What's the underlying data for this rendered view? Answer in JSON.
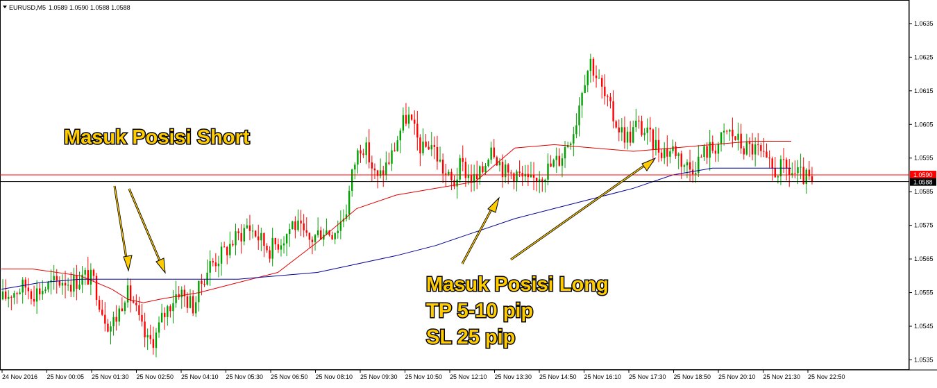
{
  "header": {
    "symbol": "EURUSD,M5",
    "ohlc": "1.0589 1.0590 1.0588 1.0588"
  },
  "price_tags": {
    "bid": "1.0590",
    "ask": "1.0588"
  },
  "annotations": {
    "short": "Masuk Posisi Short",
    "long_lines": [
      "Masuk Posisi Long",
      "TP 5-10 pip",
      "SL 25 pip"
    ]
  },
  "colors": {
    "bull": "#00a000",
    "bear": "#ff0000",
    "ma_red": "#e00000",
    "ma_blue": "#000099",
    "bid_line": "#ff0000",
    "ask_line": "#000000",
    "annotation_fill": "#ffcc00",
    "arrow_fill": "#ffcc00"
  },
  "chart_data": {
    "type": "candlestick",
    "symbol": "EURUSD",
    "timeframe": "M5",
    "ylim": [
      1.0532,
      1.0642
    ],
    "y_ticks": [
      "1.0535",
      "1.0545",
      "1.0555",
      "1.0565",
      "1.0575",
      "1.0585",
      "1.0595",
      "1.0605",
      "1.0615",
      "1.0625",
      "1.0635"
    ],
    "x_labels": [
      "24 Nov 2016",
      "25 Nov 00:05",
      "25 Nov 01:30",
      "25 Nov 02:50",
      "25 Nov 04:10",
      "25 Nov 05:30",
      "25 Nov 06:50",
      "25 Nov 08:10",
      "25 Nov 09:30",
      "25 Nov 10:50",
      "25 Nov 12:10",
      "25 Nov 13:30",
      "25 Nov 14:50",
      "25 Nov 16:10",
      "25 Nov 17:30",
      "25 Nov 18:50",
      "25 Nov 20:10",
      "25 Nov 21:30",
      "25 Nov 22:50"
    ],
    "bid": 1.059,
    "ask": 1.0588,
    "last_ohlc": {
      "open": 1.0589,
      "high": 1.059,
      "low": 1.0588,
      "close": 1.0588
    },
    "price_path": [
      1.0553,
      1.0555,
      1.0556,
      1.0557,
      1.0555,
      1.0556,
      1.0557,
      1.0558,
      1.0559,
      1.0558,
      1.0559,
      1.056,
      1.0558,
      1.055,
      1.0545,
      1.0548,
      1.0555,
      1.0553,
      1.0545,
      1.054,
      1.0542,
      1.0548,
      1.0552,
      1.0556,
      1.0553,
      1.0551,
      1.0558,
      1.0563,
      1.0565,
      1.0567,
      1.057,
      1.0572,
      1.0575,
      1.0573,
      1.057,
      1.0568,
      1.057,
      1.0572,
      1.0576,
      1.0573,
      1.057,
      1.0572,
      1.0574,
      1.0573,
      1.0575,
      1.058,
      1.0593,
      1.06,
      1.0595,
      1.0588,
      1.0592,
      1.0596,
      1.0603,
      1.0608,
      1.0602,
      1.0597,
      1.06,
      1.0595,
      1.059,
      1.0587,
      1.0593,
      1.059,
      1.0588,
      1.0592,
      1.06,
      1.0594,
      1.059,
      1.0591,
      1.0589,
      1.0587,
      1.059,
      1.0591,
      1.0593,
      1.0595,
      1.06,
      1.0605,
      1.0618,
      1.0624,
      1.0618,
      1.0612,
      1.0607,
      1.0603,
      1.0601,
      1.0605,
      1.0603,
      1.06,
      1.0598,
      1.0597,
      1.0598,
      1.0594,
      1.0592,
      1.0594,
      1.0597,
      1.0598,
      1.06,
      1.0603,
      1.0601,
      1.0598,
      1.0598,
      1.0597,
      1.0593,
      1.0591,
      1.0592,
      1.0591,
      1.059,
      1.0589,
      1.0588
    ],
    "ma_red": {
      "x_frac": [
        0,
        0.04,
        0.1,
        0.14,
        0.16,
        0.18,
        0.2,
        0.25,
        0.3,
        0.35,
        0.4,
        0.45,
        0.5,
        0.55,
        0.6,
        0.65,
        0.7,
        0.75,
        0.8,
        0.85,
        0.9,
        0.95,
        1.0
      ],
      "values": [
        1.0562,
        1.0562,
        1.056,
        1.0556,
        1.0553,
        1.0552,
        1.0553,
        1.0555,
        1.0558,
        1.0561,
        1.057,
        1.058,
        1.0584,
        1.0586,
        1.0588,
        1.0598,
        1.0599,
        1.0598,
        1.0597,
        1.0598,
        1.0599,
        1.06,
        1.06
      ]
    },
    "ma_blue": {
      "x_frac": [
        0,
        0.05,
        0.1,
        0.2,
        0.3,
        0.4,
        0.5,
        0.55,
        0.6,
        0.65,
        0.7,
        0.75,
        0.8,
        0.85,
        0.9,
        0.95,
        1.0
      ],
      "values": [
        1.0556,
        1.0558,
        1.0559,
        1.0559,
        1.0559,
        1.0561,
        1.0566,
        1.0569,
        1.0573,
        1.0577,
        1.058,
        1.0583,
        1.0586,
        1.059,
        1.0592,
        1.0592,
        1.0592
      ]
    }
  }
}
